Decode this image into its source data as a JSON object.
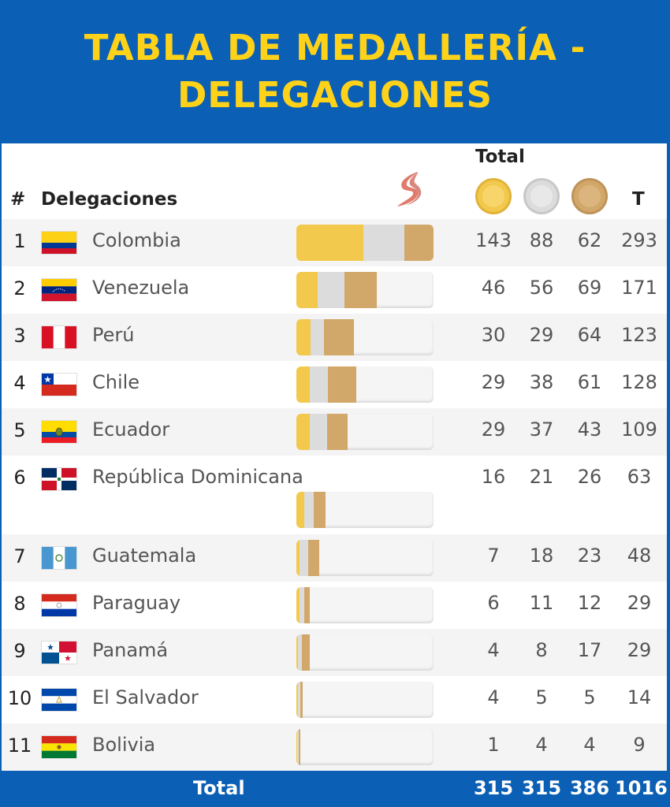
{
  "title": {
    "line1": "TABLA DE MEDALLERÍA -",
    "line2": "DELEGACIONES"
  },
  "header": {
    "total_label": "Total",
    "hash_label": "#",
    "delegations_label": "Delegaciones",
    "t_label": "T",
    "logo_icon": "games-logo-icon",
    "medal_icons": [
      "gold-medal-icon",
      "silver-medal-icon",
      "bronze-medal-icon"
    ]
  },
  "colors": {
    "brand_blue": "#0b5fb4",
    "title_yellow": "#ffd21a",
    "gold": "#f2c94c",
    "silver": "#dcdcdc",
    "bronze": "#d2a86a"
  },
  "rows": [
    {
      "rank": "1",
      "country": "Colombia",
      "flag": "colombia",
      "gold": "143",
      "silver": "88",
      "bronze": "62",
      "total": "293"
    },
    {
      "rank": "2",
      "country": "Venezuela",
      "flag": "venezuela",
      "gold": "46",
      "silver": "56",
      "bronze": "69",
      "total": "171"
    },
    {
      "rank": "3",
      "country": "Perú",
      "flag": "peru",
      "gold": "30",
      "silver": "29",
      "bronze": "64",
      "total": "123"
    },
    {
      "rank": "4",
      "country": "Chile",
      "flag": "chile",
      "gold": "29",
      "silver": "38",
      "bronze": "61",
      "total": "128"
    },
    {
      "rank": "5",
      "country": "Ecuador",
      "flag": "ecuador",
      "gold": "29",
      "silver": "37",
      "bronze": "43",
      "total": "109"
    },
    {
      "rank": "6",
      "country": "República Dominicana",
      "flag": "dominican-republic",
      "gold": "16",
      "silver": "21",
      "bronze": "26",
      "total": "63"
    },
    {
      "rank": "7",
      "country": "Guatemala",
      "flag": "guatemala",
      "gold": "7",
      "silver": "18",
      "bronze": "23",
      "total": "48"
    },
    {
      "rank": "8",
      "country": "Paraguay",
      "flag": "paraguay",
      "gold": "6",
      "silver": "11",
      "bronze": "12",
      "total": "29"
    },
    {
      "rank": "9",
      "country": "Panamá",
      "flag": "panama",
      "gold": "4",
      "silver": "8",
      "bronze": "17",
      "total": "29"
    },
    {
      "rank": "10",
      "country": "El Salvador",
      "flag": "el-salvador",
      "gold": "4",
      "silver": "5",
      "bronze": "5",
      "total": "14"
    },
    {
      "rank": "11",
      "country": "Bolivia",
      "flag": "bolivia",
      "gold": "1",
      "silver": "4",
      "bronze": "4",
      "total": "9"
    }
  ],
  "footer": {
    "label": "Total",
    "gold": "315",
    "silver": "315",
    "bronze": "386",
    "total": "1016"
  }
}
